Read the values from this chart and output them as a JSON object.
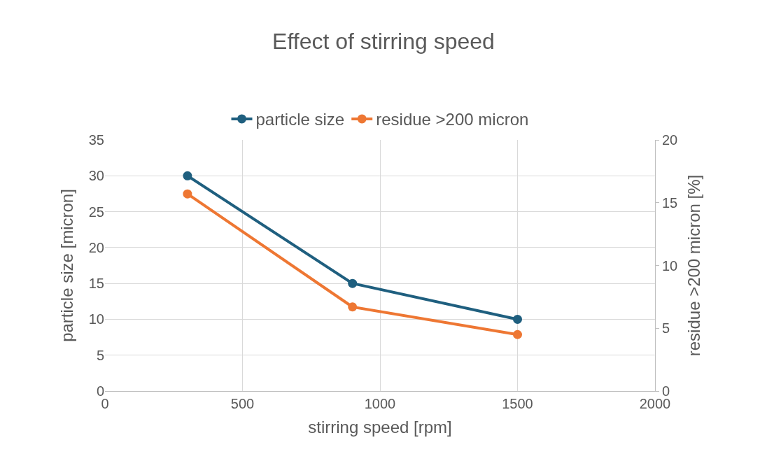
{
  "chart_data": {
    "type": "line",
    "title": "Effect of stirring speed",
    "xlabel": "stirring speed [rpm]",
    "ylabel": "particle size [micron]",
    "y2label": "residue >200 micron [%]",
    "x": [
      300,
      900,
      1500
    ],
    "series": [
      {
        "name": "particle size",
        "color": "#1f5f7f",
        "values": [
          30,
          15,
          10
        ]
      },
      {
        "name": "residue >200 micron",
        "color": "#ee7733",
        "values": [
          15.7,
          6.7,
          4.5
        ],
        "axis": "y2"
      }
    ],
    "xlim": [
      0,
      2000
    ],
    "xticks": [
      0,
      500,
      1000,
      1500,
      2000
    ],
    "ylim": [
      0,
      35
    ],
    "yticks": [
      0,
      5,
      10,
      15,
      20,
      25,
      30,
      35
    ],
    "y2lim": [
      0,
      20
    ],
    "y2ticks": [
      0,
      5,
      10,
      15,
      20
    ],
    "grid": true,
    "legend": "top",
    "marker": "circle",
    "line_style": "solid"
  }
}
